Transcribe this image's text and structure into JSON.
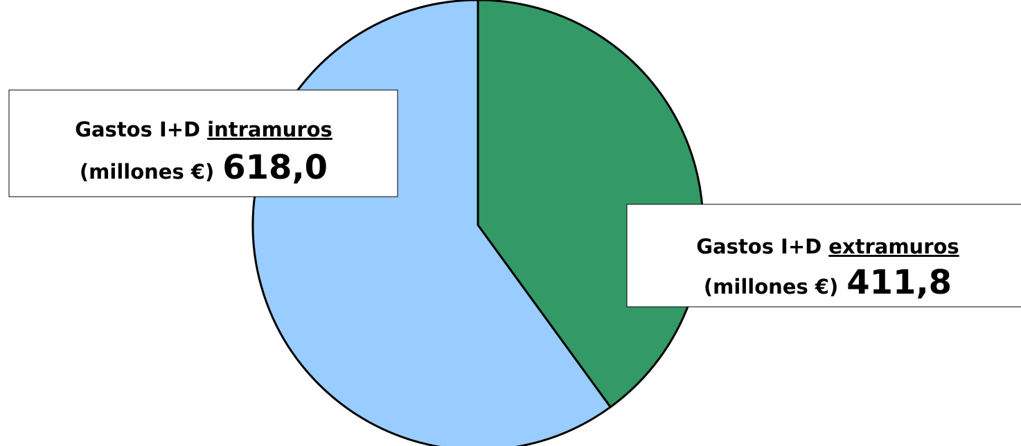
{
  "chart_data": {
    "type": "pie",
    "label_prefix": "Gastos I+D",
    "unit_label": "(millones €)",
    "categories": [
      "extramuros",
      "intramuros"
    ],
    "values": [
      411.8,
      618.0
    ],
    "value_labels": [
      "411,8",
      "618,0"
    ],
    "colors": [
      "#339966",
      "#99ccff"
    ]
  }
}
